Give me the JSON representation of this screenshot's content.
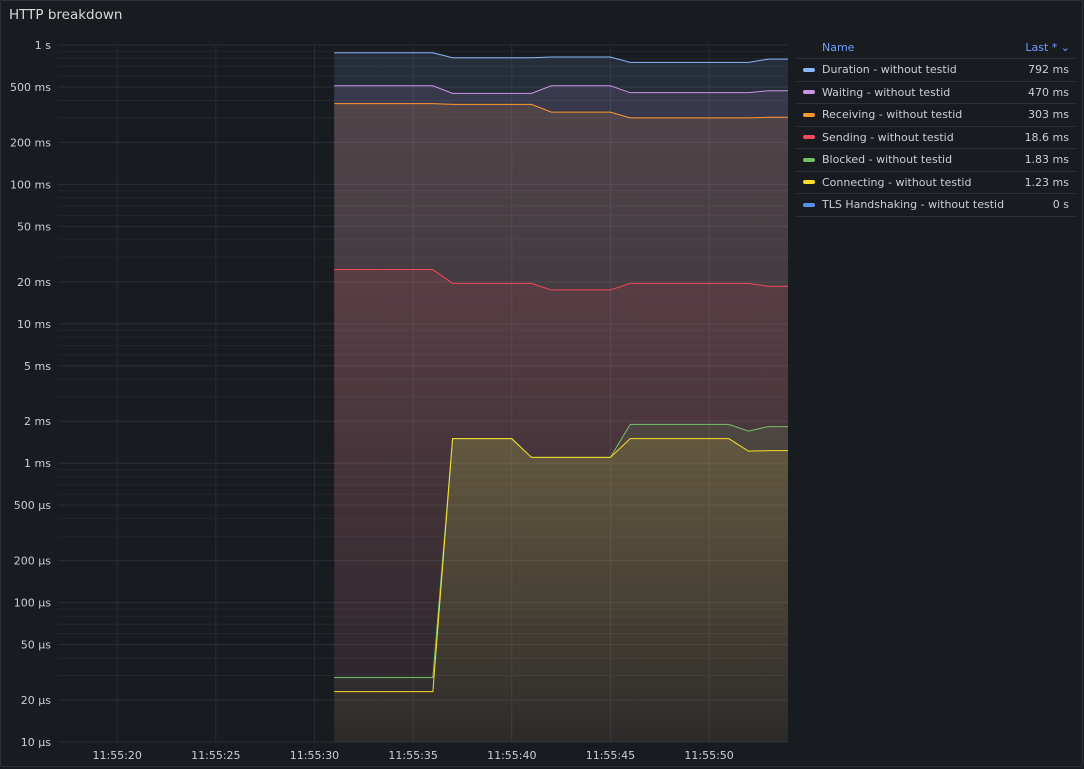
{
  "panel": {
    "title": "HTTP breakdown"
  },
  "legend": {
    "name_header": "Name",
    "last_header": "Last *",
    "rows": [
      {
        "name": "Duration - without testid",
        "value": "792 ms",
        "color": "#8ab8ff"
      },
      {
        "name": "Waiting - without testid",
        "value": "470 ms",
        "color": "#ca95e5"
      },
      {
        "name": "Receiving - without testid",
        "value": "303 ms",
        "color": "#ff9830"
      },
      {
        "name": "Sending - without testid",
        "value": "18.6 ms",
        "color": "#f2495c"
      },
      {
        "name": "Blocked - without testid",
        "value": "1.83 ms",
        "color": "#73bf69"
      },
      {
        "name": "Connecting - without testid",
        "value": "1.23 ms",
        "color": "#fade2a"
      },
      {
        "name": "TLS Handshaking - without testid",
        "value": "0 s",
        "color": "#5794f2"
      }
    ]
  },
  "chart_data": {
    "type": "line",
    "title": "HTTP breakdown",
    "y_scale": "log",
    "ylim_seconds": [
      1e-05,
      1
    ],
    "xlim": [
      "11:55:17",
      "11:55:54"
    ],
    "grid": true,
    "legend_placement": "right",
    "y_ticks": [
      {
        "value": 1,
        "label": "1 s"
      },
      {
        "value": 0.5,
        "label": "500 ms"
      },
      {
        "value": 0.2,
        "label": "200 ms"
      },
      {
        "value": 0.1,
        "label": "100 ms"
      },
      {
        "value": 0.05,
        "label": "50 ms"
      },
      {
        "value": 0.02,
        "label": "20 ms"
      },
      {
        "value": 0.01,
        "label": "10 ms"
      },
      {
        "value": 0.005,
        "label": "5 ms"
      },
      {
        "value": 0.002,
        "label": "2 ms"
      },
      {
        "value": 0.001,
        "label": "1 ms"
      },
      {
        "value": 0.0005,
        "label": "500 µs"
      },
      {
        "value": 0.0002,
        "label": "200 µs"
      },
      {
        "value": 0.0001,
        "label": "100 µs"
      },
      {
        "value": 5e-05,
        "label": "50 µs"
      },
      {
        "value": 2e-05,
        "label": "20 µs"
      },
      {
        "value": 1e-05,
        "label": "10 µs"
      }
    ],
    "x_ticks": [
      "11:55:20",
      "11:55:25",
      "11:55:30",
      "11:55:35",
      "11:55:40",
      "11:55:45",
      "11:55:50"
    ],
    "x": [
      "11:55:31",
      "11:55:32",
      "11:55:33",
      "11:55:34",
      "11:55:35",
      "11:55:36",
      "11:55:37",
      "11:55:38",
      "11:55:39",
      "11:55:40",
      "11:55:41",
      "11:55:42",
      "11:55:43",
      "11:55:44",
      "11:55:45",
      "11:55:46",
      "11:55:47",
      "11:55:48",
      "11:55:49",
      "11:55:50",
      "11:55:51",
      "11:55:52",
      "11:55:53",
      "11:55:54"
    ],
    "series": [
      {
        "name": "Duration - without testid",
        "color": "#8ab8ff",
        "values_ms": [
          880,
          880,
          880,
          880,
          880,
          880,
          810,
          810,
          810,
          810,
          810,
          820,
          820,
          820,
          820,
          750,
          750,
          750,
          750,
          750,
          750,
          750,
          792,
          792
        ]
      },
      {
        "name": "Waiting - without testid",
        "color": "#ca95e5",
        "values_ms": [
          510,
          510,
          510,
          510,
          510,
          510,
          450,
          450,
          450,
          450,
          450,
          510,
          510,
          510,
          510,
          455,
          455,
          455,
          455,
          455,
          455,
          455,
          470,
          470
        ]
      },
      {
        "name": "Receiving - without testid",
        "color": "#ff9830",
        "values_ms": [
          380,
          380,
          380,
          380,
          380,
          380,
          375,
          375,
          375,
          375,
          375,
          330,
          330,
          330,
          330,
          300,
          300,
          300,
          300,
          300,
          300,
          300,
          303,
          303
        ]
      },
      {
        "name": "Sending - without testid",
        "color": "#f2495c",
        "values_ms": [
          24.5,
          24.5,
          24.5,
          24.5,
          24.5,
          24.5,
          19.5,
          19.5,
          19.5,
          19.5,
          19.5,
          17.5,
          17.5,
          17.5,
          17.5,
          19.5,
          19.5,
          19.5,
          19.5,
          19.5,
          19.5,
          19.5,
          18.6,
          18.6
        ]
      },
      {
        "name": "Blocked - without testid",
        "color": "#73bf69",
        "values_ms": [
          0.029,
          0.029,
          0.029,
          0.029,
          0.029,
          0.029,
          1.5,
          1.5,
          1.5,
          1.5,
          1.1,
          1.1,
          1.1,
          1.1,
          1.1,
          1.9,
          1.9,
          1.9,
          1.9,
          1.9,
          1.9,
          1.7,
          1.83,
          1.83
        ]
      },
      {
        "name": "Connecting - without testid",
        "color": "#fade2a",
        "values_ms": [
          0.023,
          0.023,
          0.023,
          0.023,
          0.023,
          0.023,
          1.5,
          1.5,
          1.5,
          1.5,
          1.1,
          1.1,
          1.1,
          1.1,
          1.1,
          1.5,
          1.5,
          1.5,
          1.5,
          1.5,
          1.5,
          1.22,
          1.23,
          1.23
        ]
      },
      {
        "name": "TLS Handshaking - without testid",
        "color": "#5794f2",
        "values_ms": [
          0,
          0,
          0,
          0,
          0,
          0,
          0,
          0,
          0,
          0,
          0,
          0,
          0,
          0,
          0,
          0,
          0,
          0,
          0,
          0,
          0,
          0,
          0,
          0
        ]
      }
    ]
  }
}
